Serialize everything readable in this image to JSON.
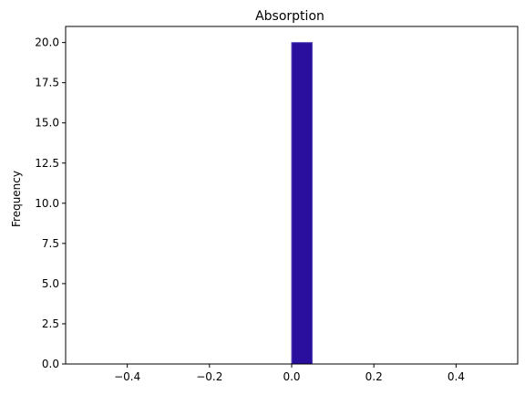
{
  "chart_data": {
    "type": "bar",
    "title": "Absorption",
    "xlabel": "",
    "ylabel": "Frequency",
    "xlim": [
      -0.55,
      0.55
    ],
    "ylim": [
      0,
      21
    ],
    "x_ticks": [
      -0.4,
      -0.2,
      0.0,
      0.2,
      0.4
    ],
    "x_tick_labels": [
      "−0.4",
      "−0.2",
      "0.0",
      "0.2",
      "0.4"
    ],
    "y_ticks": [
      0,
      2.5,
      5,
      7.5,
      10,
      12.5,
      15,
      17.5,
      20
    ],
    "y_tick_labels": [
      "0.0",
      "2.5",
      "5.0",
      "7.5",
      "10.0",
      "12.5",
      "15.0",
      "17.5",
      "20.0"
    ],
    "grid": false,
    "bars": [
      {
        "x_start": 0.0,
        "x_end": 0.05,
        "value": 20
      }
    ],
    "bar_color": "#2a0f9e",
    "bar_edge_color": "#5a4bb8"
  }
}
